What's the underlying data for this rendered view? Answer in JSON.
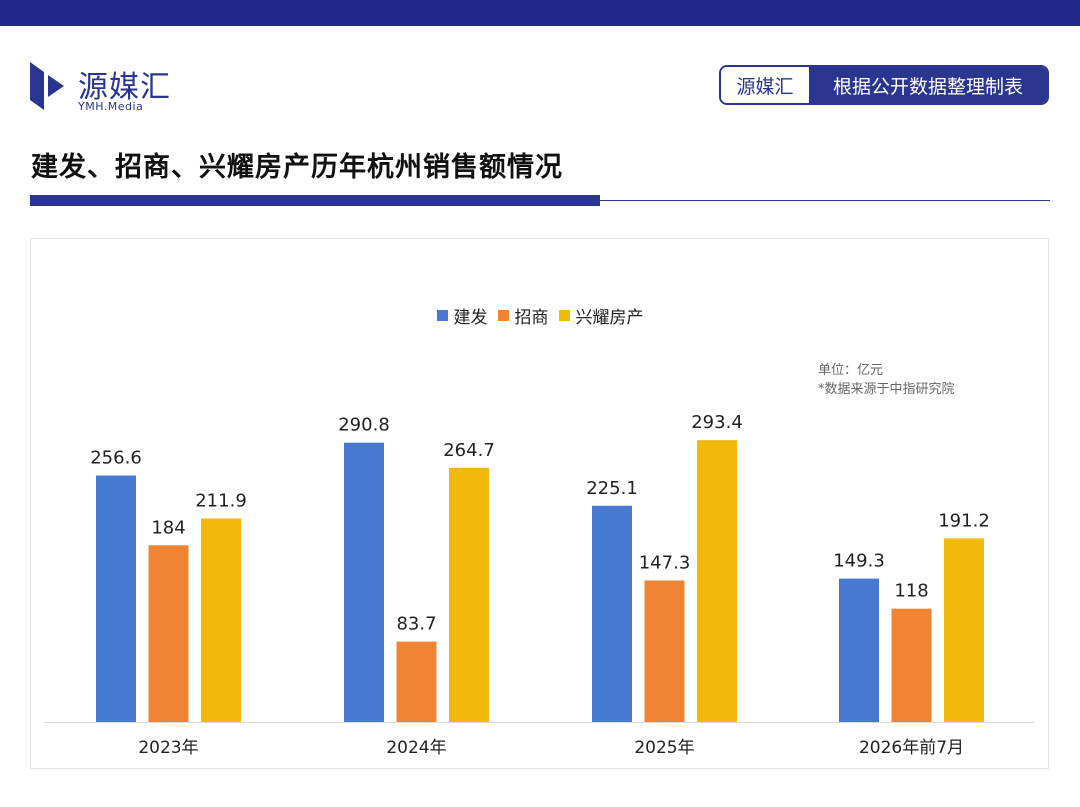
{
  "header": {
    "brand_name": "源媒汇",
    "brand_sub": "YMH.Media",
    "source_badge_left": "源媒汇",
    "source_badge_right": "根据公开数据整理制表"
  },
  "page_title": "建发、招商、兴耀房产历年杭州销售额情况",
  "notes": {
    "unit": "单位：亿元",
    "source": "*数据来源于中指研究院"
  },
  "colors": {
    "brand": "#2a3590",
    "series": [
      "#4878d0",
      "#ee8434",
      "#f0b90b"
    ]
  },
  "chart_data": {
    "type": "bar",
    "title": "",
    "xlabel": "",
    "ylabel": "",
    "categories": [
      "2023年",
      "2024年",
      "2025年",
      "2026年前7月"
    ],
    "series": [
      {
        "name": "建发",
        "values": [
          256.6,
          290.8,
          225.1,
          149.3
        ]
      },
      {
        "name": "招商",
        "values": [
          184,
          83.7,
          147.3,
          118
        ]
      },
      {
        "name": "兴耀房产",
        "values": [
          211.9,
          264.7,
          293.4,
          191.2
        ]
      }
    ],
    "ylim": [
      0,
      320
    ],
    "grid": false,
    "legend": "top-center",
    "data_labels": true
  }
}
